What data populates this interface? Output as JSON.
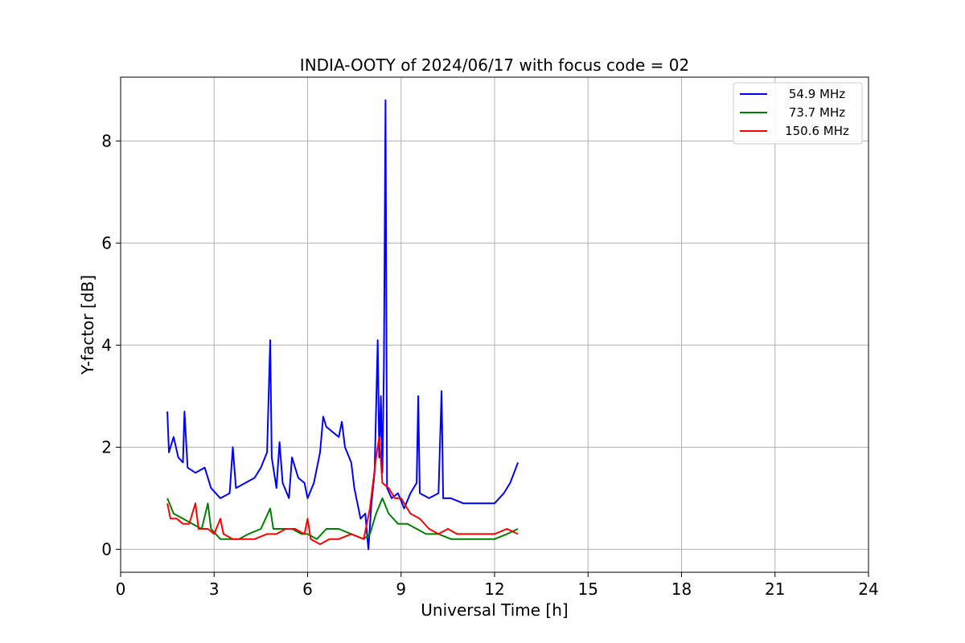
{
  "chart_data": {
    "type": "line",
    "title": "INDIA-OOTY of 2024/06/17 with focus code = 02",
    "xlabel": "Universal Time [h]",
    "ylabel": "Y-factor [dB]",
    "xlim": [
      0,
      24
    ],
    "ylim": [
      -0.45,
      9.25
    ],
    "xticks": [
      0,
      3,
      6,
      9,
      12,
      15,
      18,
      21,
      24
    ],
    "yticks": [
      0,
      2,
      4,
      6,
      8
    ],
    "grid": true,
    "legend_position": "top-right",
    "series": [
      {
        "name": " 54.9 MHz",
        "color": "#0000ff",
        "points": [
          [
            1.5,
            2.7
          ],
          [
            1.55,
            1.9
          ],
          [
            1.7,
            2.2
          ],
          [
            1.85,
            1.8
          ],
          [
            2.0,
            1.7
          ],
          [
            2.05,
            2.7
          ],
          [
            2.15,
            1.6
          ],
          [
            2.4,
            1.5
          ],
          [
            2.7,
            1.6
          ],
          [
            2.9,
            1.2
          ],
          [
            3.2,
            1.0
          ],
          [
            3.5,
            1.1
          ],
          [
            3.6,
            2.0
          ],
          [
            3.7,
            1.2
          ],
          [
            4.0,
            1.3
          ],
          [
            4.3,
            1.4
          ],
          [
            4.5,
            1.6
          ],
          [
            4.7,
            1.9
          ],
          [
            4.8,
            4.1
          ],
          [
            4.85,
            1.8
          ],
          [
            5.0,
            1.2
          ],
          [
            5.1,
            2.1
          ],
          [
            5.2,
            1.3
          ],
          [
            5.4,
            1.0
          ],
          [
            5.5,
            1.8
          ],
          [
            5.7,
            1.4
          ],
          [
            5.9,
            1.3
          ],
          [
            6.0,
            1.0
          ],
          [
            6.2,
            1.3
          ],
          [
            6.4,
            1.9
          ],
          [
            6.5,
            2.6
          ],
          [
            6.6,
            2.4
          ],
          [
            6.8,
            2.3
          ],
          [
            7.0,
            2.2
          ],
          [
            7.1,
            2.5
          ],
          [
            7.2,
            2.0
          ],
          [
            7.4,
            1.7
          ],
          [
            7.5,
            1.2
          ],
          [
            7.7,
            0.6
          ],
          [
            7.85,
            0.7
          ],
          [
            7.95,
            0.0
          ],
          [
            8.05,
            0.9
          ],
          [
            8.15,
            1.5
          ],
          [
            8.25,
            4.1
          ],
          [
            8.3,
            1.8
          ],
          [
            8.35,
            3.0
          ],
          [
            8.4,
            1.5
          ],
          [
            8.45,
            3.6
          ],
          [
            8.5,
            8.8
          ],
          [
            8.55,
            1.2
          ],
          [
            8.7,
            1.0
          ],
          [
            8.9,
            1.1
          ],
          [
            9.1,
            0.8
          ],
          [
            9.3,
            1.1
          ],
          [
            9.5,
            1.3
          ],
          [
            9.55,
            3.0
          ],
          [
            9.6,
            1.1
          ],
          [
            9.9,
            1.0
          ],
          [
            10.2,
            1.1
          ],
          [
            10.3,
            3.1
          ],
          [
            10.35,
            1.0
          ],
          [
            10.6,
            1.0
          ],
          [
            11.0,
            0.9
          ],
          [
            11.5,
            0.9
          ],
          [
            12.0,
            0.9
          ],
          [
            12.3,
            1.1
          ],
          [
            12.5,
            1.3
          ],
          [
            12.75,
            1.7
          ]
        ]
      },
      {
        "name": " 73.7 MHz",
        "color": "#008000",
        "points": [
          [
            1.5,
            1.0
          ],
          [
            1.7,
            0.7
          ],
          [
            2.0,
            0.6
          ],
          [
            2.3,
            0.5
          ],
          [
            2.6,
            0.4
          ],
          [
            2.8,
            0.9
          ],
          [
            2.9,
            0.4
          ],
          [
            3.2,
            0.2
          ],
          [
            3.5,
            0.2
          ],
          [
            3.8,
            0.2
          ],
          [
            4.1,
            0.3
          ],
          [
            4.5,
            0.4
          ],
          [
            4.8,
            0.8
          ],
          [
            4.9,
            0.4
          ],
          [
            5.2,
            0.4
          ],
          [
            5.5,
            0.4
          ],
          [
            5.8,
            0.3
          ],
          [
            6.0,
            0.3
          ],
          [
            6.3,
            0.2
          ],
          [
            6.6,
            0.4
          ],
          [
            7.0,
            0.4
          ],
          [
            7.4,
            0.3
          ],
          [
            7.8,
            0.2
          ],
          [
            8.0,
            0.3
          ],
          [
            8.2,
            0.7
          ],
          [
            8.4,
            1.0
          ],
          [
            8.6,
            0.7
          ],
          [
            8.9,
            0.5
          ],
          [
            9.2,
            0.5
          ],
          [
            9.5,
            0.4
          ],
          [
            9.8,
            0.3
          ],
          [
            10.2,
            0.3
          ],
          [
            10.6,
            0.2
          ],
          [
            11.0,
            0.2
          ],
          [
            11.5,
            0.2
          ],
          [
            12.0,
            0.2
          ],
          [
            12.4,
            0.3
          ],
          [
            12.75,
            0.4
          ]
        ]
      },
      {
        "name": "150.6 MHz",
        "color": "#ff0000",
        "points": [
          [
            1.5,
            0.9
          ],
          [
            1.6,
            0.6
          ],
          [
            1.8,
            0.6
          ],
          [
            2.0,
            0.5
          ],
          [
            2.2,
            0.5
          ],
          [
            2.4,
            0.9
          ],
          [
            2.5,
            0.4
          ],
          [
            2.8,
            0.4
          ],
          [
            3.0,
            0.3
          ],
          [
            3.2,
            0.6
          ],
          [
            3.3,
            0.3
          ],
          [
            3.6,
            0.2
          ],
          [
            4.0,
            0.2
          ],
          [
            4.3,
            0.2
          ],
          [
            4.7,
            0.3
          ],
          [
            5.0,
            0.3
          ],
          [
            5.3,
            0.4
          ],
          [
            5.6,
            0.4
          ],
          [
            5.9,
            0.3
          ],
          [
            6.0,
            0.6
          ],
          [
            6.1,
            0.2
          ],
          [
            6.4,
            0.1
          ],
          [
            6.7,
            0.2
          ],
          [
            7.0,
            0.2
          ],
          [
            7.4,
            0.3
          ],
          [
            7.8,
            0.2
          ],
          [
            8.0,
            0.8
          ],
          [
            8.2,
            1.8
          ],
          [
            8.3,
            2.2
          ],
          [
            8.4,
            1.3
          ],
          [
            8.6,
            1.2
          ],
          [
            8.8,
            1.0
          ],
          [
            9.0,
            1.0
          ],
          [
            9.3,
            0.7
          ],
          [
            9.6,
            0.6
          ],
          [
            9.9,
            0.4
          ],
          [
            10.2,
            0.3
          ],
          [
            10.5,
            0.4
          ],
          [
            10.8,
            0.3
          ],
          [
            11.2,
            0.3
          ],
          [
            11.6,
            0.3
          ],
          [
            12.0,
            0.3
          ],
          [
            12.4,
            0.4
          ],
          [
            12.75,
            0.3
          ]
        ]
      }
    ]
  }
}
